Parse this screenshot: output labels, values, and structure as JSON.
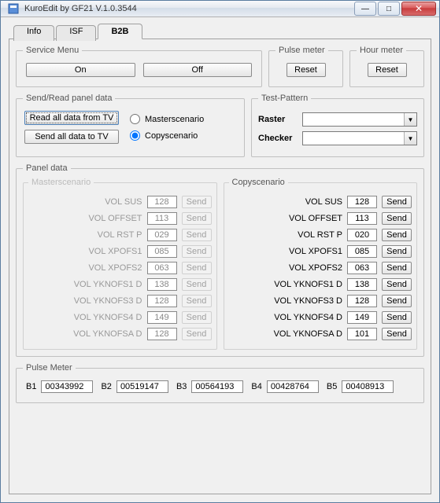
{
  "window": {
    "title": "KuroEdit by GF21 V.1.0.3544",
    "close_symbol": "✕",
    "min_symbol": "—",
    "max_symbol": "□"
  },
  "tabs": {
    "info": "Info",
    "isf": "ISF",
    "b2b": "B2B",
    "active": "b2b"
  },
  "service_menu": {
    "legend": "Service Menu",
    "on": "On",
    "off": "Off"
  },
  "pulse_meter_top": {
    "legend": "Pulse meter",
    "reset": "Reset"
  },
  "hour_meter": {
    "legend": "Hour meter",
    "reset": "Reset"
  },
  "send_read": {
    "legend": "Send/Read panel data",
    "read_all": "Read all data from TV",
    "send_all": "Send all data to TV",
    "masterscenario": "Masterscenario",
    "copyscenario": "Copyscenario",
    "selected": "copyscenario"
  },
  "test_pattern": {
    "legend": "Test-Pattern",
    "raster_label": "Raster",
    "checker_label": "Checker",
    "raster_value": "",
    "checker_value": ""
  },
  "panel_data": {
    "legend": "Panel data",
    "send": "Send",
    "master": {
      "legend": "Masterscenario",
      "params": [
        {
          "label": "VOL SUS",
          "value": "128"
        },
        {
          "label": "VOL OFFSET",
          "value": "113"
        },
        {
          "label": "VOL RST P",
          "value": "029"
        },
        {
          "label": "VOL XPOFS1",
          "value": "085"
        },
        {
          "label": "VOL XPOFS2",
          "value": "063"
        },
        {
          "label": "VOL YKNOFS1 D",
          "value": "138"
        },
        {
          "label": "VOL YKNOFS3 D",
          "value": "128"
        },
        {
          "label": "VOL YKNOFS4 D",
          "value": "149"
        },
        {
          "label": "VOL YKNOFSA D",
          "value": "128"
        }
      ]
    },
    "copy": {
      "legend": "Copyscenario",
      "params": [
        {
          "label": "VOL SUS",
          "value": "128"
        },
        {
          "label": "VOL OFFSET",
          "value": "113"
        },
        {
          "label": "VOL RST P",
          "value": "020"
        },
        {
          "label": "VOL XPOFS1",
          "value": "085"
        },
        {
          "label": "VOL XPOFS2",
          "value": "063"
        },
        {
          "label": "VOL YKNOFS1 D",
          "value": "138"
        },
        {
          "label": "VOL YKNOFS3 D",
          "value": "128"
        },
        {
          "label": "VOL YKNOFS4 D",
          "value": "149"
        },
        {
          "label": "VOL YKNOFSA D",
          "value": "101"
        }
      ]
    }
  },
  "pulse_meter_bottom": {
    "legend": "Pulse Meter",
    "labels": [
      "B1",
      "B2",
      "B3",
      "B4",
      "B5"
    ],
    "values": [
      "00343992",
      "00519147",
      "00564193",
      "00428764",
      "00408913"
    ]
  },
  "colors": {
    "window_border": "#5a7ca0",
    "fieldset_border": "#c0c0c0",
    "bg": "#f0f0f0",
    "close_red": "#c73a3a"
  }
}
